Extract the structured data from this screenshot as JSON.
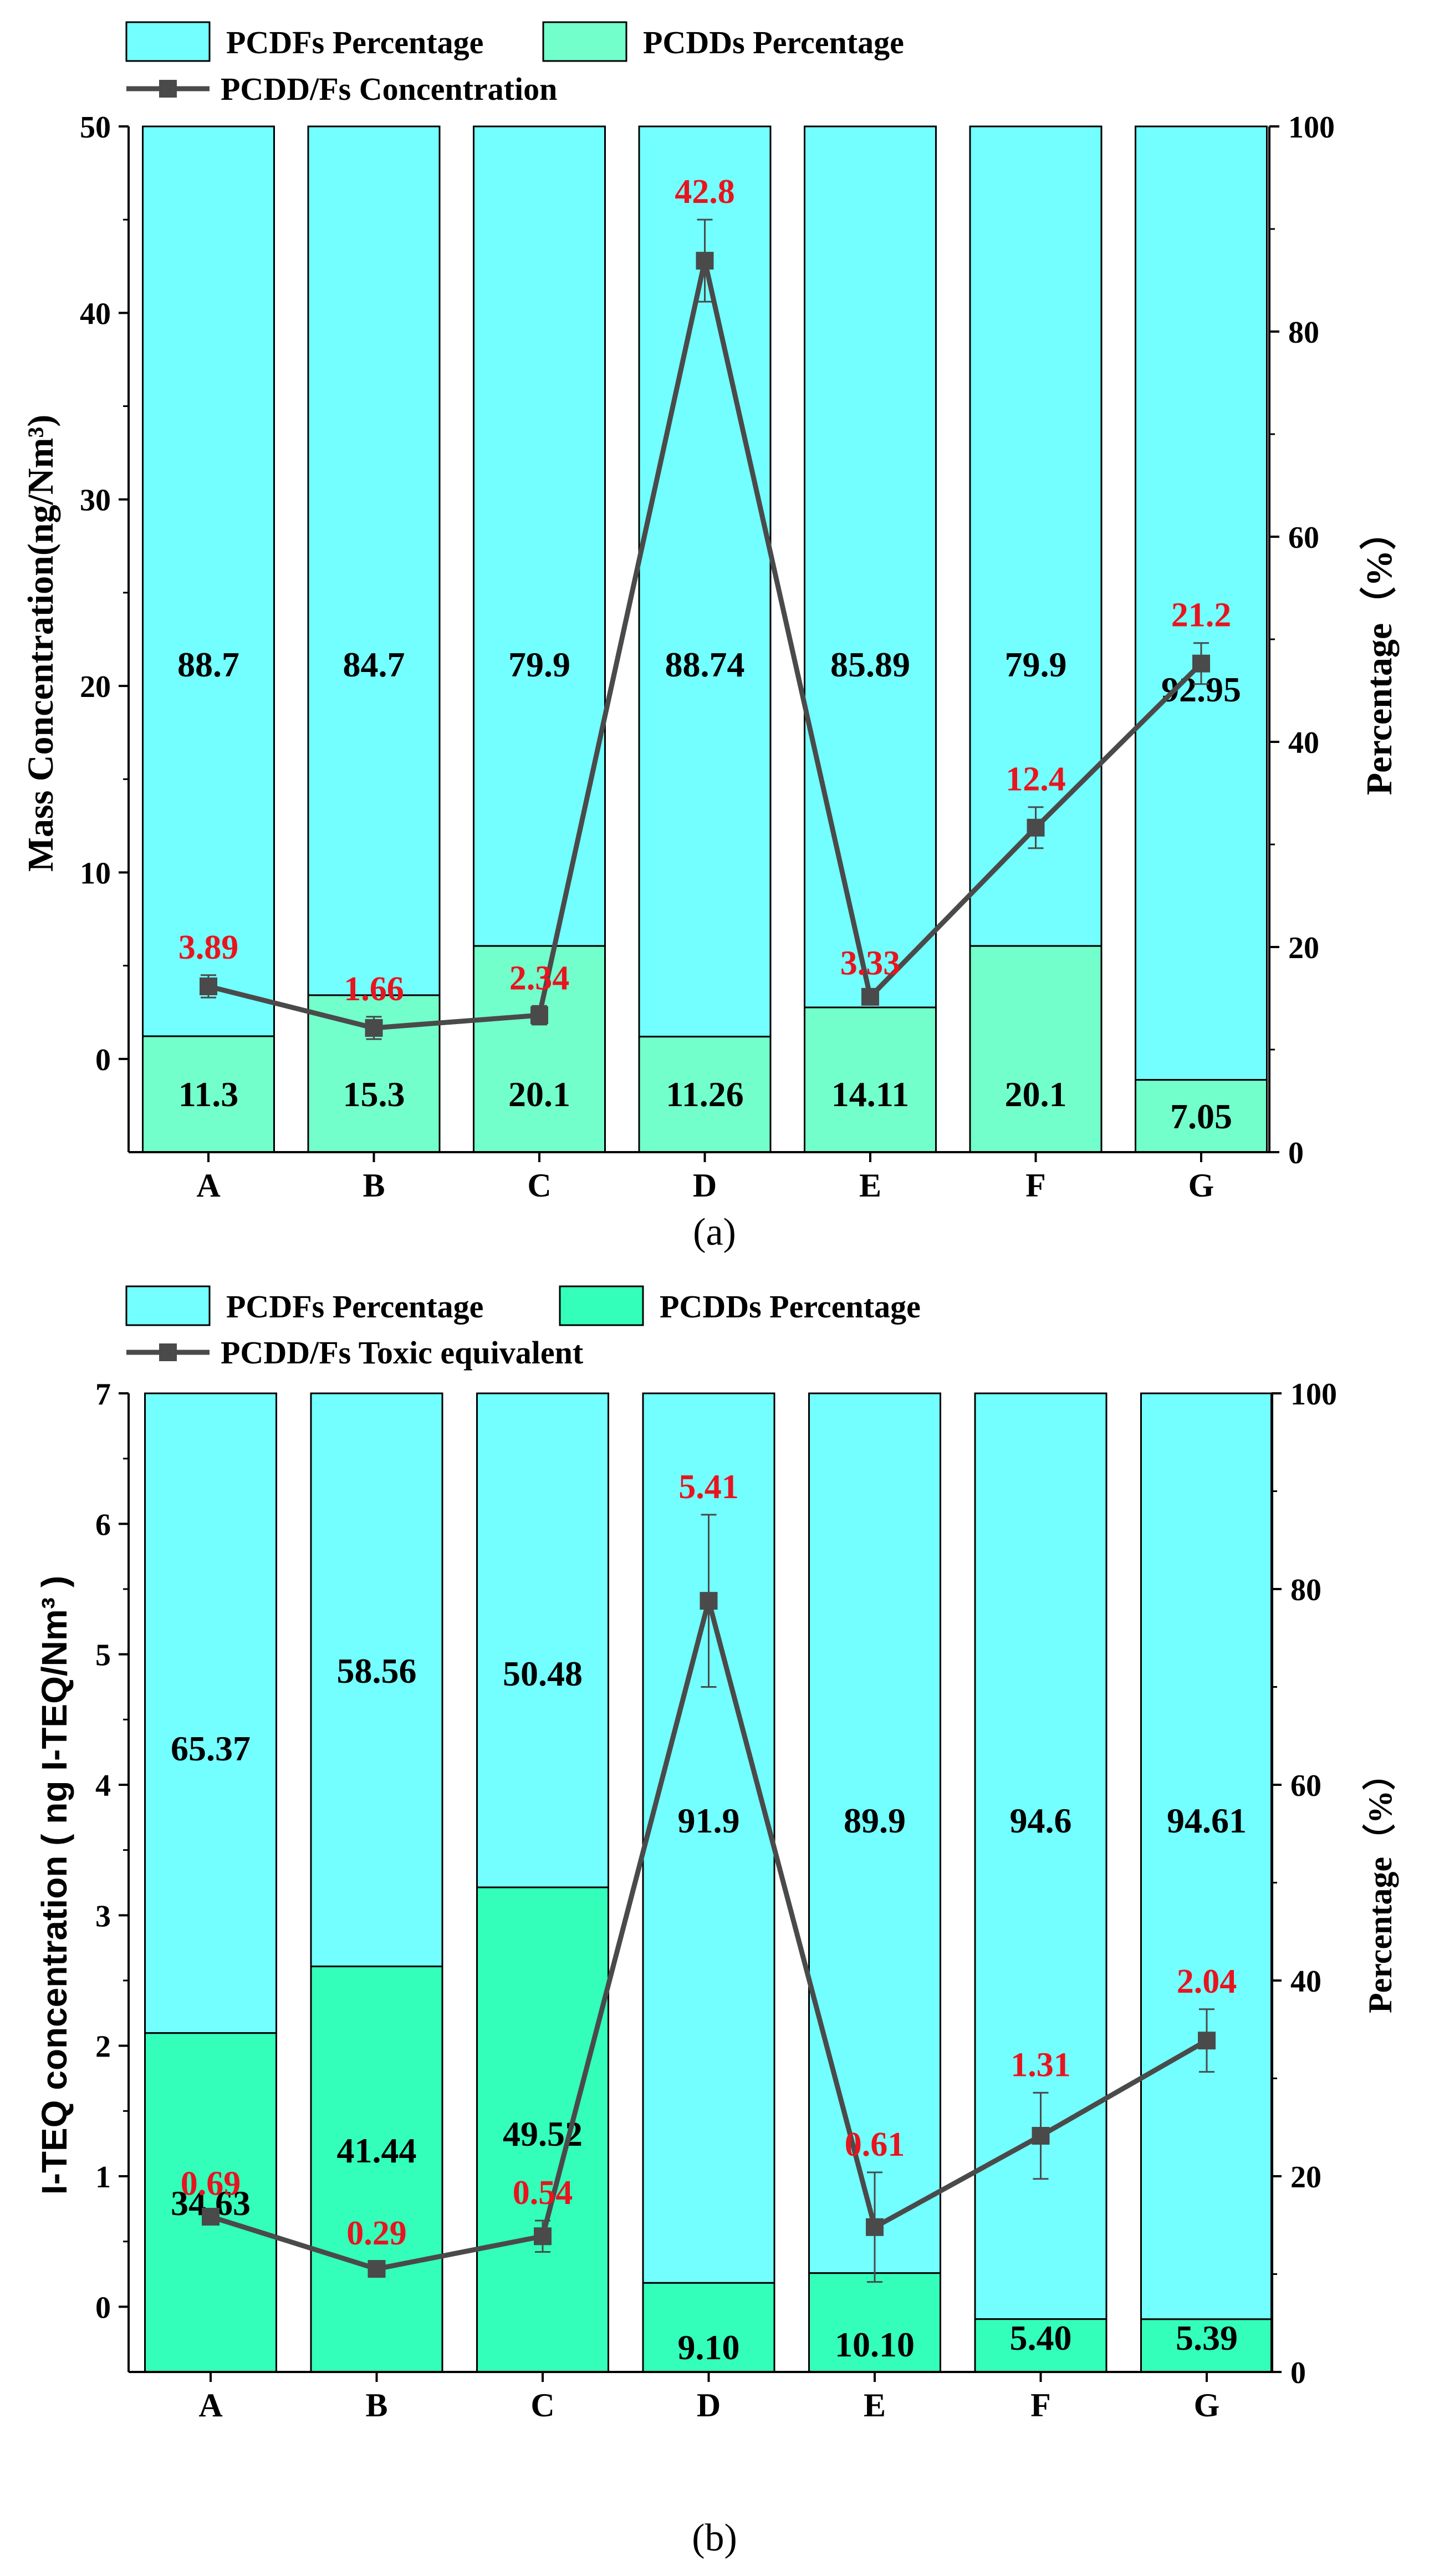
{
  "colors": {
    "pcdf_a": "#73FFFF",
    "pcdd_a": "#73FFCC",
    "pcdf_b": "#73FFFF",
    "pcdd_b": "#33FFBB",
    "line": "#4A4A4A",
    "label_red": "#E8141E",
    "text": "#000000"
  },
  "chart_data": [
    {
      "type": "bar",
      "panel_label": "(a)",
      "categories": [
        "A",
        "B",
        "C",
        "D",
        "E",
        "F",
        "G"
      ],
      "stacked": true,
      "series": [
        {
          "name": "PCDFs Percentage",
          "values": [
            88.7,
            84.7,
            79.9,
            88.74,
            85.89,
            79.9,
            92.95
          ],
          "labels": [
            "88.7",
            "84.7",
            "79.9",
            "88.74",
            "85.89",
            "79.9",
            "92.95"
          ]
        },
        {
          "name": "PCDDs Percentage",
          "values": [
            11.3,
            15.3,
            20.1,
            11.26,
            14.11,
            20.1,
            7.05
          ],
          "labels": [
            "11.3",
            "15.3",
            "20.1",
            "11.26",
            "14.11",
            "20.1",
            "7.05"
          ]
        }
      ],
      "line": {
        "name": "PCDD/Fs Concentration",
        "values": [
          3.89,
          1.66,
          2.34,
          42.8,
          3.33,
          12.4,
          21.2
        ],
        "labels": [
          "3.89",
          "1.66",
          "2.34",
          "42.8",
          "3.33",
          "12.4",
          "21.2"
        ],
        "errors": [
          0.6,
          0.6,
          0.5,
          2.2,
          0.3,
          1.1,
          1.1
        ]
      },
      "ylabel_left": "Mass Concentration(ng/Nm³)",
      "ylabel_right": "Percentage（%）",
      "ylim_left": [
        -5,
        50
      ],
      "ylim_right": [
        0,
        100
      ],
      "yticks_left": [
        "0",
        "10",
        "20",
        "30",
        "40",
        "50"
      ],
      "yticks_right": [
        "0",
        "20",
        "40",
        "60",
        "80",
        "100"
      ],
      "legend": [
        "PCDFs Percentage",
        "PCDDs Percentage",
        "PCDD/Fs Concentration"
      ]
    },
    {
      "type": "bar",
      "panel_label": "(b)",
      "categories": [
        "A",
        "B",
        "C",
        "D",
        "E",
        "F",
        "G"
      ],
      "stacked": true,
      "series": [
        {
          "name": "PCDFs Percentage",
          "values": [
            65.37,
            58.56,
            50.48,
            91.9,
            89.9,
            94.6,
            94.61
          ],
          "labels": [
            "65.37",
            "58.56",
            "50.48",
            "91.9",
            "89.9",
            "94.6",
            "94.61"
          ]
        },
        {
          "name": "PCDDs Percentage",
          "values": [
            34.63,
            41.44,
            49.52,
            9.1,
            10.1,
            5.4,
            5.39
          ],
          "labels": [
            "34.63",
            "41.44",
            "49.52",
            "9.10",
            "10.10",
            "5.40",
            "5.39"
          ]
        }
      ],
      "line": {
        "name": "PCDD/Fs Toxic equivalent",
        "values": [
          0.69,
          0.29,
          0.54,
          5.41,
          0.61,
          1.31,
          2.04
        ],
        "labels": [
          "0.69",
          "0.29",
          "0.54",
          "5.41",
          "0.61",
          "1.31",
          "2.04"
        ],
        "errors": [
          0.04,
          0.06,
          0.12,
          0.66,
          0.42,
          0.33,
          0.24
        ]
      },
      "ylabel_left": "I-TEQ concentration ( ng I-TEQ/Nm³ )",
      "ylabel_right": "Percentage（%）",
      "ylim_left": [
        -0.5,
        7
      ],
      "ylim_right": [
        0,
        100
      ],
      "yticks_left": [
        "0",
        "1",
        "2",
        "3",
        "4",
        "5",
        "6",
        "7"
      ],
      "yticks_right": [
        "0",
        "20",
        "40",
        "60",
        "80",
        "100"
      ],
      "legend": [
        "PCDFs Percentage",
        "PCDDs Percentage",
        "PCDD/Fs Toxic equivalent"
      ]
    }
  ]
}
